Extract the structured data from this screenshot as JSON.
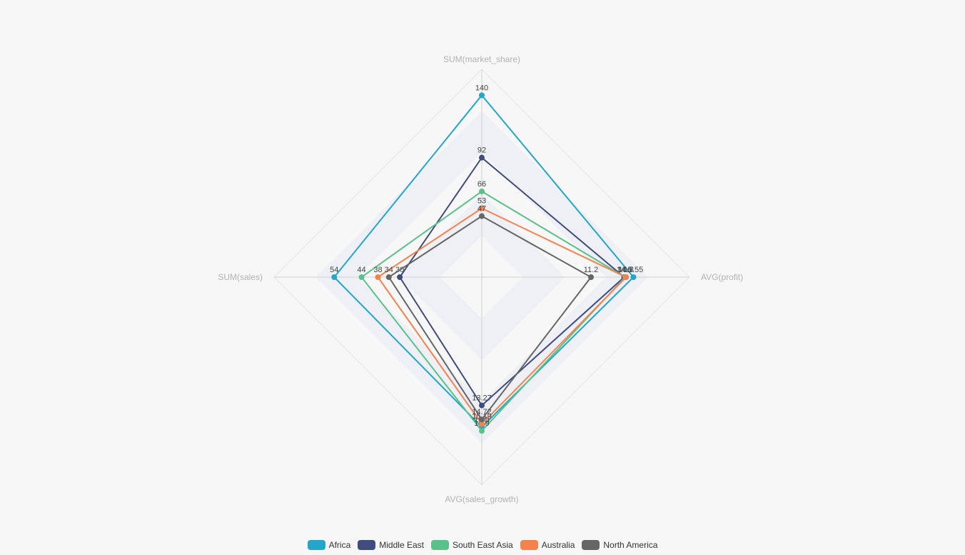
{
  "chart_data": {
    "type": "radar",
    "indicators": [
      {
        "name": "SUM(market_share)",
        "max": 160
      },
      {
        "name": "AVG(profit)",
        "max": 21.3
      },
      {
        "name": "AVG(sales_growth)",
        "max": 21.5
      },
      {
        "name": "SUM(sales)",
        "max": 76
      }
    ],
    "series": [
      {
        "name": "Africa",
        "color": "#23a6c8",
        "values": [
          140,
          15.55,
          15.5,
          54
        ],
        "labels": [
          "140",
          "15.55",
          "15.5",
          "54"
        ]
      },
      {
        "name": "Middle East",
        "color": "#414c7e",
        "values": [
          92,
          14.6,
          13.27,
          30
        ],
        "labels": [
          "92",
          "14.6",
          "13.27",
          "30"
        ]
      },
      {
        "name": "South East Asia",
        "color": "#5ac18a",
        "values": [
          66,
          14.7,
          15.9,
          44
        ],
        "labels": [
          "66",
          "14.7",
          "15.9",
          "44"
        ]
      },
      {
        "name": "Australia",
        "color": "#f5824c",
        "values": [
          53,
          14.8,
          15.19,
          38
        ],
        "labels": [
          "53",
          "14.8",
          "15.19",
          "38"
        ]
      },
      {
        "name": "North America",
        "color": "#666666",
        "values": [
          47,
          11.2,
          14.72,
          34
        ],
        "labels": [
          "47",
          "11.2",
          "14.72",
          "34"
        ]
      }
    ],
    "legend_position": "bottom-center"
  }
}
